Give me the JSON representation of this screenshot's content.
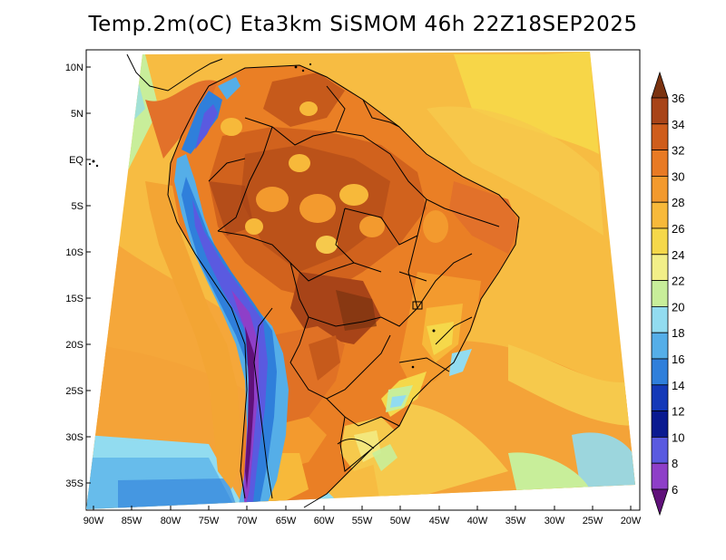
{
  "title": "Temp.2m(oC) Eta3km SiSMOM 46h 22Z18SEP2025",
  "lat_labels": [
    "10N",
    "5N",
    "EQ",
    "5S",
    "10S",
    "15S",
    "20S",
    "25S",
    "30S",
    "35S"
  ],
  "lon_labels": [
    "90W",
    "85W",
    "80W",
    "75W",
    "70W",
    "65W",
    "60W",
    "55W",
    "50W",
    "45W",
    "40W",
    "35W",
    "30W",
    "25W",
    "20W"
  ],
  "colorbar": {
    "labels": [
      "36",
      "34",
      "32",
      "30",
      "28",
      "26",
      "24",
      "22",
      "20",
      "18",
      "16",
      "14",
      "12",
      "10",
      "8",
      "6"
    ],
    "colors": [
      "#7b3310",
      "#a84418",
      "#cf5d1c",
      "#e87a24",
      "#f39a2e",
      "#f7b93a",
      "#f5d84a",
      "#f2ef88",
      "#c8ee9a",
      "#92dcf0",
      "#55aee8",
      "#2f7fdb",
      "#1439b8",
      "#0a1a90",
      "#5a5ae0",
      "#8e3fc8",
      "#60117a"
    ]
  }
}
